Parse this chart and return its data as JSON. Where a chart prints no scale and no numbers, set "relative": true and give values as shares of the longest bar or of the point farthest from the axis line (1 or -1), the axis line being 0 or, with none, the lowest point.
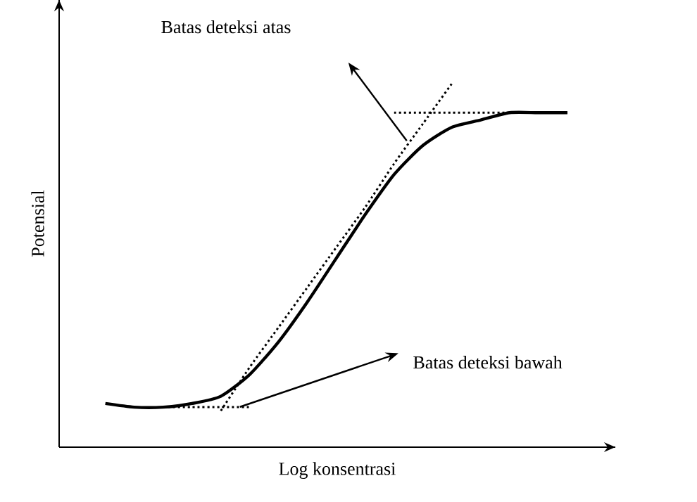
{
  "chart_data": {
    "type": "line",
    "relative": true,
    "xlabel": "Log konsentrasi",
    "ylabel": "Potensial",
    "marker": "none",
    "categories": [
      null,
      null,
      null,
      null,
      null,
      null,
      null,
      null,
      null,
      null,
      null,
      null,
      null,
      null,
      null,
      null,
      null
    ],
    "series": [
      {
        "color": "#000000",
        "line_style": "solid",
        "values": [
          0.12,
          0.11,
          0.11,
          0.12,
          0.14,
          0.2,
          0.29,
          0.4,
          0.52,
          0.64,
          0.75,
          0.83,
          0.88,
          0.9,
          0.92,
          0.92,
          0.92
        ]
      },
      {
        "color": "#000000",
        "line_style": "dotted",
        "values": [
          null,
          null,
          0.11,
          0.11,
          0.11,
          0.11,
          null,
          null,
          null,
          null,
          null,
          null,
          null,
          null,
          null,
          null,
          null
        ]
      },
      {
        "color": "#000000",
        "line_style": "dotted",
        "values": [
          null,
          null,
          null,
          null,
          null,
          null,
          null,
          null,
          null,
          null,
          0.92,
          0.92,
          0.92,
          0.92,
          0.92,
          0.92,
          0.92
        ]
      },
      {
        "color": "#000000",
        "line_style": "dotted",
        "values": [
          null,
          null,
          null,
          null,
          0.1,
          0.22,
          0.33,
          0.44,
          0.55,
          0.66,
          0.78,
          0.89,
          1.0,
          null,
          null,
          null,
          null
        ]
      }
    ],
    "annotations": [
      "Batas deteksi atas",
      "Batas deteksi bawah"
    ]
  }
}
